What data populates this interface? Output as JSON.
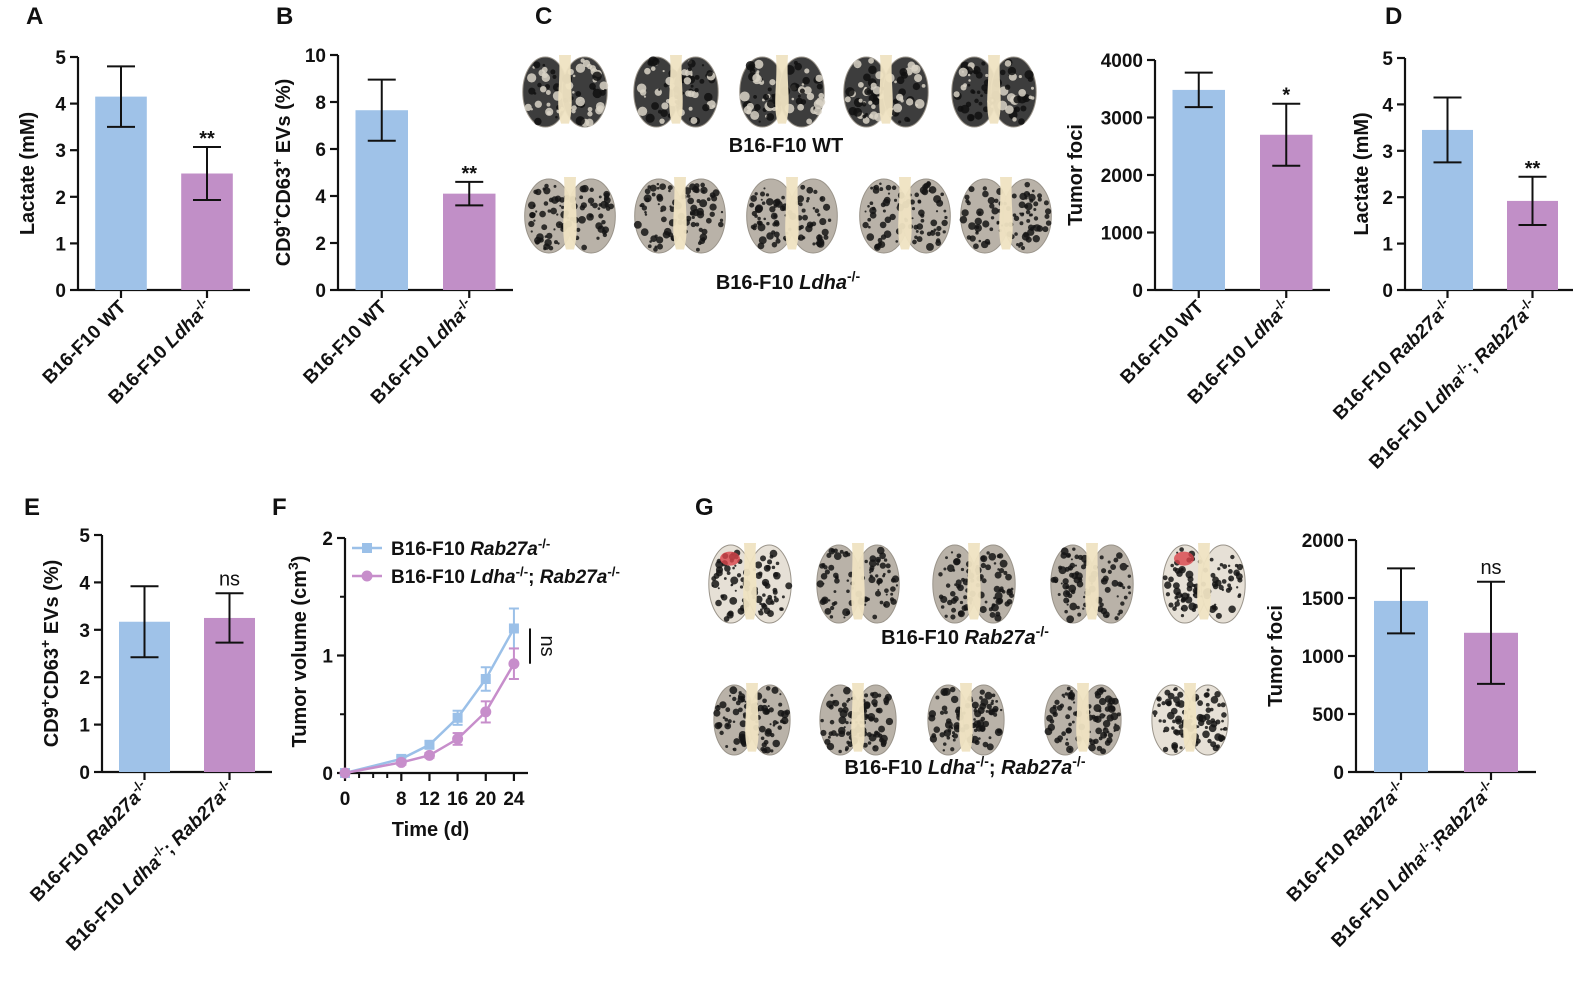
{
  "colors": {
    "blue": "#9fc2e8",
    "purple": "#c18fc7",
    "line_blue": "#9bc0e8",
    "line_purple": "#c78ecb",
    "axis": "#111111"
  },
  "chart_data": [
    {
      "id": "A",
      "panel": "A",
      "type": "bar",
      "ylabel": "Lactate (mM)",
      "ylim": [
        0,
        5
      ],
      "yticks": [
        "0",
        "1",
        "2",
        "3",
        "4",
        "5"
      ],
      "categories": [
        {
          "base": "B16-F10 WT",
          "ital": "",
          "sup": ""
        },
        {
          "base": "B16-F10 ",
          "ital": "Ldha",
          "sup": "-/-"
        }
      ],
      "values": [
        4.15,
        2.5
      ],
      "errors": [
        0.65,
        0.57
      ],
      "significance": [
        "",
        "**"
      ]
    },
    {
      "id": "B",
      "panel": "B",
      "type": "bar",
      "ylabel": "CD9⁺CD63⁺ EVs (%)",
      "ylim": [
        0,
        10
      ],
      "yticks": [
        "0",
        "2",
        "4",
        "6",
        "8",
        "10"
      ],
      "categories": [
        {
          "base": "B16-F10 WT",
          "ital": "",
          "sup": ""
        },
        {
          "base": "B16-F10 ",
          "ital": "Ldha",
          "sup": "-/-"
        }
      ],
      "values": [
        7.65,
        4.1
      ],
      "errors": [
        1.3,
        0.5
      ],
      "significance": [
        "",
        "**"
      ]
    },
    {
      "id": "C",
      "panel": "C",
      "type": "bar",
      "ylabel": "Tumor foci",
      "ylim": [
        0,
        4000
      ],
      "yticks": [
        "0",
        "1000",
        "2000",
        "3000",
        "4000"
      ],
      "categories": [
        {
          "base": "B16-F10 WT",
          "ital": "",
          "sup": ""
        },
        {
          "base": "B16-F10 ",
          "ital": "Ldha",
          "sup": "-/-"
        }
      ],
      "values": [
        3480,
        2700
      ],
      "errors": [
        300,
        540
      ],
      "significance": [
        "",
        "*"
      ]
    },
    {
      "id": "D",
      "panel": "D",
      "type": "bar",
      "ylabel": "Lactate (mM)",
      "ylim": [
        0,
        5
      ],
      "yticks": [
        "0",
        "1",
        "2",
        "3",
        "4",
        "5"
      ],
      "categories": [
        {
          "base": "B16-F10 ",
          "ital": "Rab27a",
          "sup": "-/-"
        },
        {
          "base": "B16-F10 ",
          "ital": "Ldha",
          "sup": "-/-",
          "base2": "; ",
          "ital2": "Rab27a",
          "sup2": "-/-"
        }
      ],
      "values": [
        3.45,
        1.92
      ],
      "errors": [
        0.7,
        0.52
      ],
      "significance": [
        "",
        "**"
      ]
    },
    {
      "id": "E",
      "panel": "E",
      "type": "bar",
      "ylabel": "CD9⁺CD63⁺ EVs (%)",
      "ylim": [
        0,
        5
      ],
      "yticks": [
        "0",
        "1",
        "2",
        "3",
        "4",
        "5"
      ],
      "categories": [
        {
          "base": "B16-F10 ",
          "ital": "Rab27a",
          "sup": "-/-"
        },
        {
          "base": "B16-F10 ",
          "ital": "Ldha",
          "sup": "-/-",
          "base2": "; ",
          "ital2": "Rab27a",
          "sup2": "-/-"
        }
      ],
      "values": [
        3.17,
        3.25
      ],
      "errors": [
        0.75,
        0.52
      ],
      "significance": [
        "",
        "ns"
      ]
    },
    {
      "id": "F",
      "panel": "F",
      "type": "line",
      "xlabel": "Time (d)",
      "ylabel": "Tumor volume (cm³)",
      "xlim": [
        0,
        26
      ],
      "ylim": [
        0,
        2
      ],
      "xticks": [
        "0",
        "8",
        "12",
        "16",
        "20",
        "24"
      ],
      "yticks": [
        "0",
        "1",
        "2"
      ],
      "x": [
        0,
        8,
        12,
        16,
        20,
        24
      ],
      "series": [
        {
          "name": "B16-F10 Rab27a-/-",
          "legend_base": "B16-F10 ",
          "legend_ital": "Rab27a",
          "legend_sup": "-/-",
          "values": [
            0,
            0.12,
            0.24,
            0.47,
            0.8,
            1.23
          ],
          "errors": [
            0.01,
            0.02,
            0.03,
            0.06,
            0.1,
            0.17
          ],
          "marker": "square"
        },
        {
          "name": "B16-F10 Ldha-/-; Rab27a-/-",
          "legend_base": "B16-F10 ",
          "legend_ital": "Ldha",
          "legend_sup": "-/-",
          "legend_base2": "; ",
          "legend_ital2": "Rab27a",
          "legend_sup2": "-/-",
          "values": [
            0,
            0.09,
            0.15,
            0.29,
            0.52,
            0.93
          ],
          "errors": [
            0.01,
            0.02,
            0.02,
            0.05,
            0.09,
            0.13
          ],
          "marker": "circle"
        }
      ],
      "annotation": "ns"
    },
    {
      "id": "G",
      "panel": "G",
      "type": "bar",
      "ylabel": "Tumor foci",
      "ylim": [
        0,
        2000
      ],
      "yticks": [
        "0",
        "500",
        "1000",
        "1500",
        "2000"
      ],
      "categories": [
        {
          "base": "B16-F10 ",
          "ital": "Rab27a",
          "sup": "-/-"
        },
        {
          "base": "B16-F10 ",
          "ital": "Ldha",
          "sup": "-/-",
          "base2": ";",
          "ital2": "Rab27a",
          "sup2": "-/-"
        }
      ],
      "values": [
        1475,
        1200
      ],
      "errors": [
        280,
        440
      ],
      "significance": [
        "",
        "ns"
      ]
    }
  ],
  "photos": {
    "C": {
      "row1": {
        "base": "B16-F10 WT",
        "ital": "",
        "sup": ""
      },
      "row2": {
        "base": "B16-F10 ",
        "ital": "Ldha",
        "sup": "-/-"
      }
    },
    "G": {
      "row1": {
        "base": "B16-F10 ",
        "ital": "Rab27a",
        "sup": "-/-"
      },
      "row2": {
        "base": "B16-F10 ",
        "ital": "Ldha",
        "sup": "-/-",
        "base2": "; ",
        "ital2": "Rab27a",
        "sup2": "-/-"
      }
    }
  }
}
